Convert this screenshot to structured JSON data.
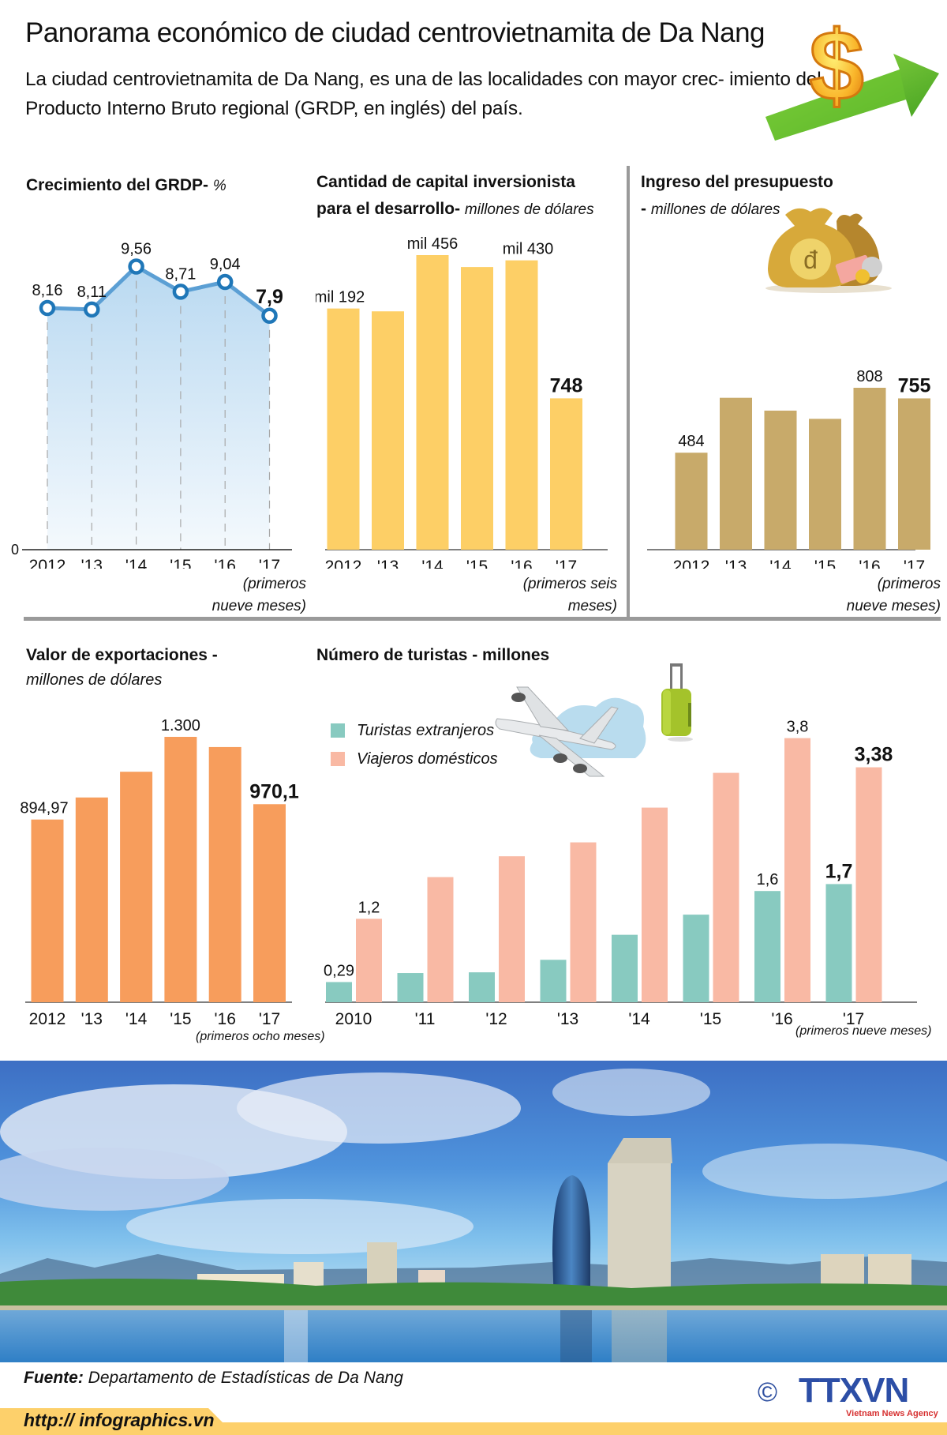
{
  "header": {
    "title": "Panorama económico de ciudad centrovietnamita de Da Nang",
    "subtitle": "La ciudad centrovietnamita de Da Nang, es una de las localidades con mayor crec- imiento del Producto Interno Bruto regional (GRDP, en inglés) del país.",
    "icon": "dollar-growth-arrow-icon"
  },
  "footer": {
    "source_label": "Fuente:",
    "source_text": "Departamento de Estadísticas de Da Nang",
    "url": "http:// infographics.vn",
    "copyright_symbol": "©",
    "logo_text": "TTXVN",
    "logo_subtext": "Vietnam News Agency"
  },
  "photo": {
    "description": "Da Nang city skyline over the river"
  },
  "colors": {
    "grdp_line": "#1f77b8",
    "grdp_fill": "#b9d9f1",
    "capital_bars": "#fdcf66",
    "budget_bars": "#c8aa6a",
    "export_bars": "#f79d5c",
    "foreign_tourists": "#88cac0",
    "domestic_travelers": "#f9b9a4",
    "rule": "#9a9a9a",
    "url_bar": "#fdd06b"
  },
  "chart_data": [
    {
      "id": "grdp",
      "type": "area",
      "title": "Crecimiento del GRDP-",
      "unit": "%",
      "categories": [
        "2012",
        "'13",
        "'14",
        "'15",
        "'16",
        "'17"
      ],
      "values": [
        8.16,
        8.11,
        9.56,
        8.71,
        9.04,
        7.9
      ],
      "labels": [
        "8,16",
        "8,11",
        "9,56",
        "8,71",
        "9,04",
        "7,9"
      ],
      "highlight_last": true,
      "y_zero_label": "0",
      "ylim": [
        0,
        9.56
      ],
      "note": [
        "(primeros",
        "nueve meses)"
      ]
    },
    {
      "id": "capital",
      "type": "bar",
      "title_line1": "Cantidad de capital inversionista",
      "title_line2": "para el desarrollo-",
      "unit": "millones de dólares",
      "categories": [
        "2012",
        "'13",
        "'14",
        "'15",
        "'16",
        "'17"
      ],
      "values": [
        1192,
        1178,
        1456,
        1397,
        1430,
        748
      ],
      "labels": [
        "mil 192",
        "",
        "mil 456",
        "",
        "mil 430",
        "748"
      ],
      "highlight_last": true,
      "ylim": [
        0,
        1456
      ],
      "note": [
        "(primeros seis",
        "meses)"
      ]
    },
    {
      "id": "budget",
      "type": "bar",
      "title_line1": "Ingreso del presupuesto",
      "title_line2": "-",
      "unit": "millones de dólares",
      "categories": [
        "2012",
        "'13",
        "'14",
        "'15",
        "'16",
        "'17"
      ],
      "values": [
        484,
        758,
        694,
        653,
        808,
        755
      ],
      "labels": [
        "484",
        "",
        "",
        "",
        "808",
        "755"
      ],
      "highlight_last": true,
      "ylim": [
        0,
        808
      ],
      "note": [
        "(primeros",
        "nueve meses)"
      ],
      "icon": "money-bags-icon"
    },
    {
      "id": "exports",
      "type": "bar",
      "title_line1": "Valor de exportaciones -",
      "unit": "millones de dólares",
      "categories": [
        "2012",
        "'13",
        "'14",
        "'15",
        "'16",
        "'17"
      ],
      "values": [
        894.97,
        1003,
        1129,
        1300,
        1250,
        970.1
      ],
      "labels": [
        "894,97",
        "",
        "",
        "1.300",
        "",
        "970,1"
      ],
      "highlight_last": true,
      "ylim": [
        0,
        1300
      ],
      "note": [
        "(primeros ocho meses)"
      ]
    },
    {
      "id": "tourists",
      "type": "bar",
      "title": "Número de turistas - millones",
      "categories": [
        "2010",
        "'11",
        "'12",
        "'13",
        "'14",
        "'15",
        "'16",
        "'17"
      ],
      "series": [
        {
          "name": "Turistas extranjeros",
          "values": [
            0.29,
            0.42,
            0.43,
            0.61,
            0.97,
            1.26,
            1.6,
            1.7
          ],
          "labels": [
            "0,29",
            "",
            "",
            "",
            "",
            "",
            "1,6",
            "1,7"
          ]
        },
        {
          "name": "Viajeros domésticos",
          "values": [
            1.2,
            1.8,
            2.1,
            2.3,
            2.8,
            3.3,
            3.8,
            3.38
          ],
          "labels": [
            "1,2",
            "",
            "",
            "",
            "",
            "",
            "3,8",
            "3,38"
          ]
        }
      ],
      "legend": "top-left",
      "highlight_last": true,
      "ylim": [
        0,
        3.8
      ],
      "note": [
        "(primeros nueve meses)"
      ],
      "icons": [
        "airplane-icon",
        "suitcase-icon"
      ]
    }
  ]
}
